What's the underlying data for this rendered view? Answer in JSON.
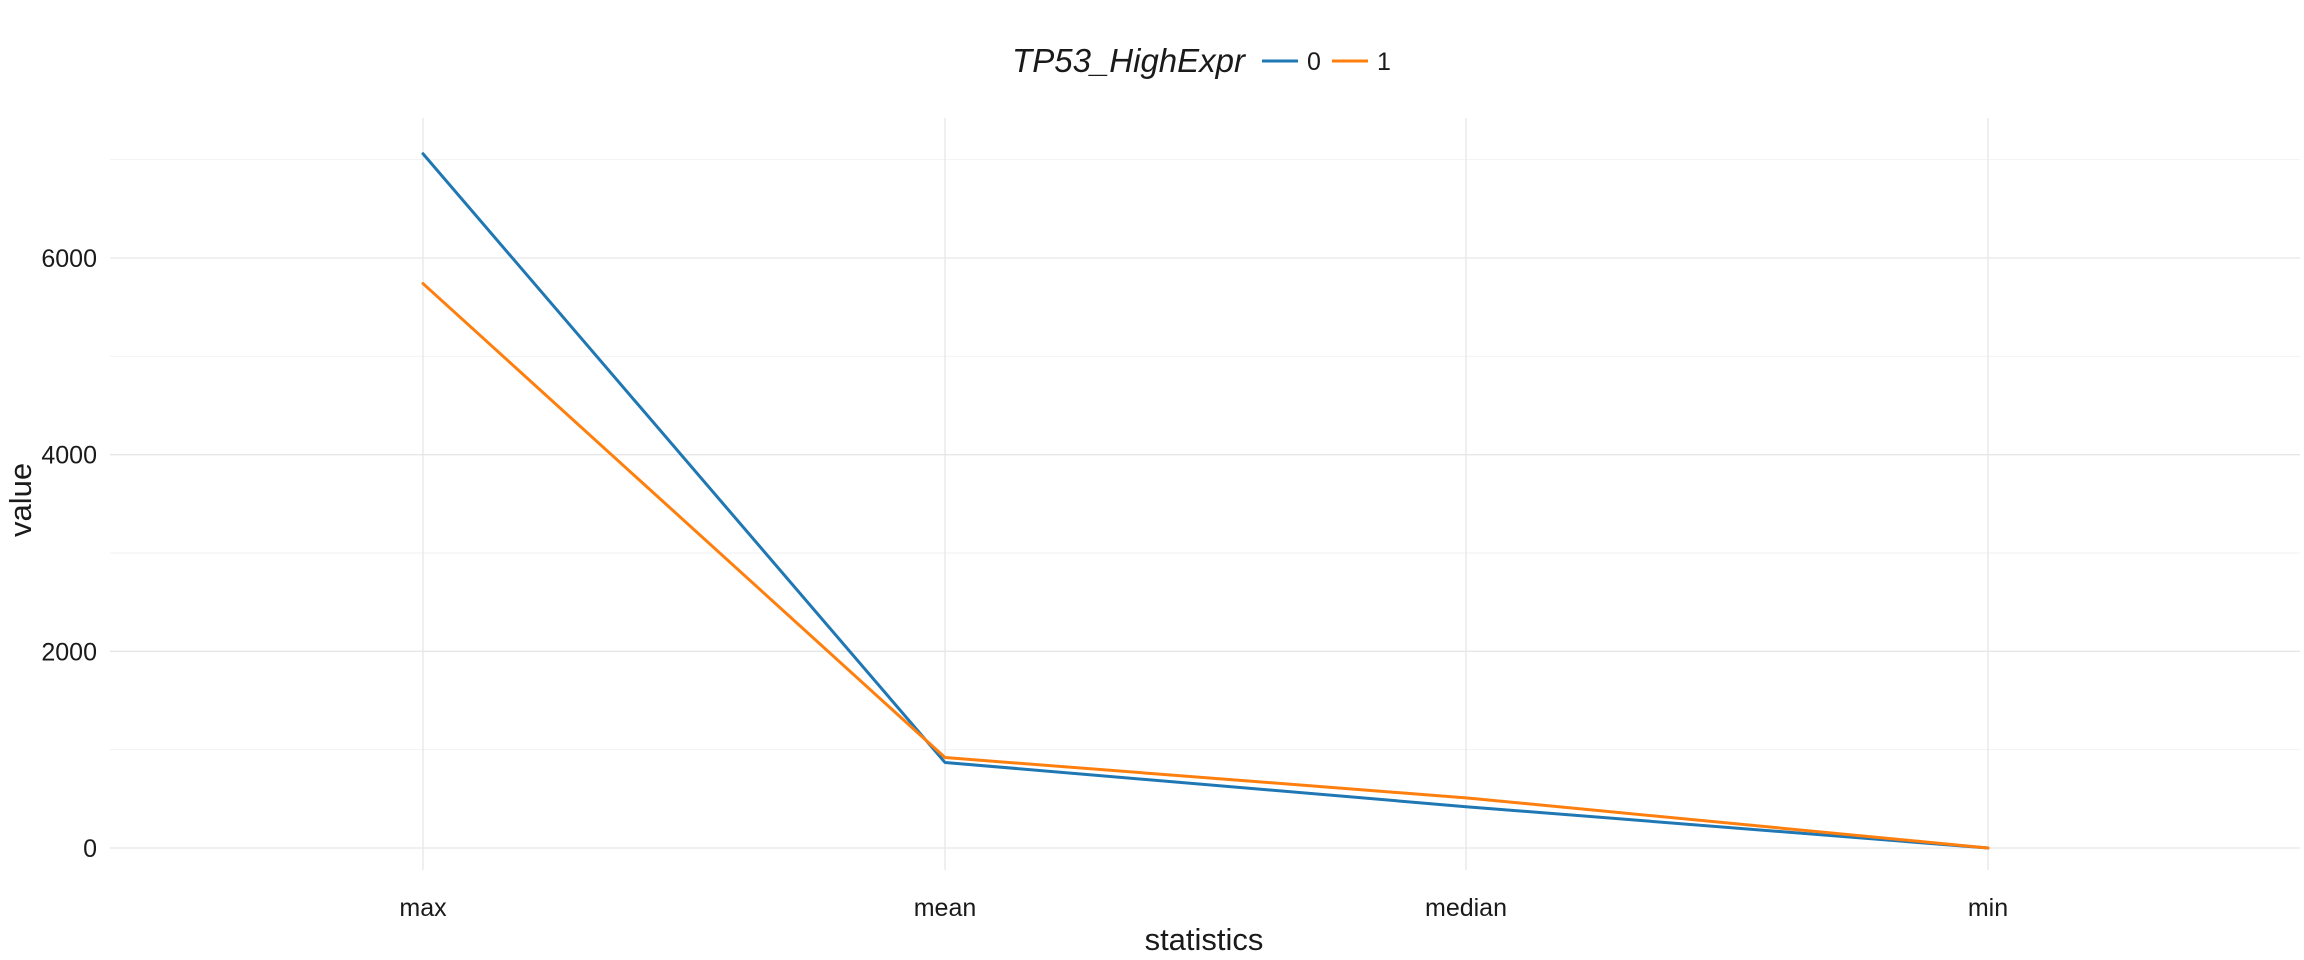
{
  "chart_data": {
    "type": "line",
    "legend_title": "TP53_HighExpr",
    "legend_placement": "top-center",
    "categories": [
      "max",
      "mean",
      "median",
      "min"
    ],
    "series": [
      {
        "name": "0",
        "color": "#1f77b4",
        "values": [
          7060,
          870,
          420,
          0
        ]
      },
      {
        "name": "1",
        "color": "#ff7f0e",
        "values": [
          5740,
          920,
          510,
          0
        ]
      }
    ],
    "xlabel": "statistics",
    "ylabel": "value",
    "yticks": [
      0,
      2000,
      4000,
      6000
    ],
    "yticks_minor": [
      1000,
      3000,
      5000,
      7000
    ],
    "ylim": [
      -200,
      7400
    ],
    "grid": true
  }
}
